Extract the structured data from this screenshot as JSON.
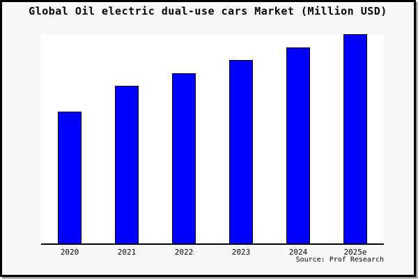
{
  "title": "Global Oil electric dual-use cars Market (Million USD)",
  "source": "Source: Prof Research",
  "colors": {
    "bar_fill": "#0000ff",
    "bar_border": "#000000",
    "figure_background": "#f8f8f8",
    "plot_background": "#ffffff",
    "axis": "#000000",
    "text": "#000000",
    "frame_border": "#000000"
  },
  "chart_data": {
    "type": "bar",
    "title": "Global Oil electric dual-use cars Market (Million USD)",
    "categories": [
      "2020",
      "2021",
      "2022",
      "2023",
      "2024",
      "2025e"
    ],
    "values": [
      63,
      75.2,
      81.5,
      87.8,
      93.6,
      100
    ],
    "xlabel": "",
    "ylabel": "",
    "ylim": [
      0,
      100
    ],
    "units": "relative index estimated from bar heights (no y-axis labels shown; 2025e = 100)",
    "grid": false,
    "legend": false,
    "y_axis_shown": false,
    "annotations": [
      "Source: Prof Research"
    ]
  }
}
